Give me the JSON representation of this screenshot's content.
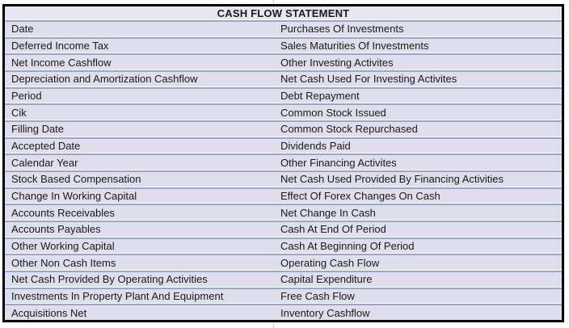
{
  "title": "CASH FLOW STATEMENT",
  "table": {
    "rows": [
      {
        "left": "Date",
        "right": "Purchases Of Investments"
      },
      {
        "left": "Deferred Income Tax",
        "right": "Sales Maturities Of Investments"
      },
      {
        "left": "Net Income Cashflow",
        "right": "Other Investing Activites"
      },
      {
        "left": "Depreciation and Amortization Cashflow",
        "right": "Net Cash Used For Investing Activites"
      },
      {
        "left": "Period",
        "right": "Debt Repayment"
      },
      {
        "left": "Cik",
        "right": "Common Stock Issued"
      },
      {
        "left": "Filling Date",
        "right": "Common Stock Repurchased"
      },
      {
        "left": "Accepted Date",
        "right": "Dividends Paid"
      },
      {
        "left": "Calendar Year",
        "right": "Other Financing Activites"
      },
      {
        "left": "Stock Based Compensation",
        "right": "Net Cash Used Provided By Financing Activities"
      },
      {
        "left": "Change In Working Capital",
        "right": "Effect Of Forex Changes On Cash"
      },
      {
        "left": "Accounts Receivables",
        "right": "Net Change In Cash"
      },
      {
        "left": "Accounts Payables",
        "right": "Cash At End Of Period"
      },
      {
        "left": "Other Working Capital",
        "right": "Cash At Beginning Of Period"
      },
      {
        "left": "Other Non Cash Items",
        "right": "Operating Cash Flow"
      },
      {
        "left": "Net Cash Provided By Operating Activities",
        "right": "Capital Expenditure"
      },
      {
        "left": "Investments In Property Plant And Equipment",
        "right": "Free Cash Flow"
      },
      {
        "left": "Acquisitions Net",
        "right": "Inventory Cashflow"
      }
    ]
  },
  "colors": {
    "header_fill": "#e7e6f0",
    "row_fill": "#dedeed",
    "separator_blue": "#9aa7c8",
    "separator_white": "#ffffff",
    "table_border": "#000000",
    "text": "#1a1a1a",
    "gridline": "#cccccc"
  }
}
